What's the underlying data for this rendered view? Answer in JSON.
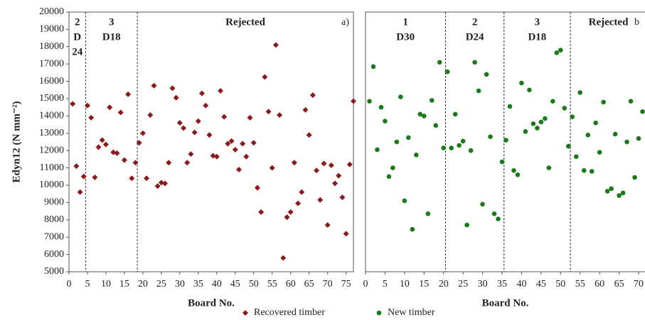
{
  "chart_data": [
    {
      "type": "scatter",
      "panel_label": "a)",
      "y_label": "Edyn12 (N mm⁻²)",
      "x_label": "Board No.",
      "xlim": [
        0,
        77
      ],
      "xticks": [
        0,
        5,
        10,
        15,
        20,
        25,
        30,
        35,
        40,
        45,
        50,
        55,
        60,
        65,
        70,
        75
      ],
      "ylim": [
        5000,
        20000
      ],
      "yticks": [
        5000,
        6000,
        7000,
        8000,
        9000,
        10000,
        11000,
        12000,
        13000,
        14000,
        15000,
        16000,
        17000,
        18000,
        19000,
        20000
      ],
      "dividers": [
        4.5,
        18.5
      ],
      "group_labels": [
        [
          "2",
          "D",
          "24"
        ],
        [
          "3",
          "D18"
        ],
        [
          "Rejected"
        ]
      ],
      "x": [
        1,
        2,
        3,
        4,
        5,
        6,
        7,
        8,
        9,
        10,
        11,
        12,
        13,
        14,
        15,
        16,
        17,
        18,
        19,
        20,
        21,
        22,
        23,
        24,
        25,
        26,
        27,
        28,
        29,
        30,
        31,
        32,
        33,
        34,
        35,
        36,
        37,
        38,
        39,
        40,
        41,
        42,
        43,
        44,
        45,
        46,
        47,
        48,
        49,
        50,
        51,
        52,
        53,
        54,
        55,
        56,
        57,
        58,
        59,
        60,
        61,
        62,
        63,
        64,
        65,
        66,
        67,
        68,
        69,
        70,
        71,
        72,
        73,
        74,
        75,
        76,
        77
      ],
      "series": [
        {
          "name": "Recovered timber",
          "color": "#8b1a1a",
          "marker": "diamond",
          "values": [
            14700,
            11100,
            9600,
            10500,
            14600,
            13900,
            10450,
            12200,
            12600,
            12350,
            14500,
            11900,
            11850,
            14200,
            11450,
            15250,
            10400,
            11300,
            12450,
            13000,
            10400,
            14050,
            15750,
            9950,
            10150,
            10100,
            11300,
            15600,
            15050,
            13600,
            13300,
            11300,
            11800,
            13050,
            13700,
            15300,
            14600,
            12900,
            11700,
            11650,
            15450,
            13950,
            12400,
            12550,
            12050,
            10900,
            12400,
            11650,
            13900,
            12450,
            9850,
            8450,
            16250,
            14250,
            11000,
            18100,
            14050,
            5800,
            8150,
            8450,
            11300,
            8950,
            9600,
            14350,
            12900,
            15200,
            10850,
            9150,
            11250,
            7700,
            11150,
            10100,
            10550,
            9300,
            7200,
            11200,
            14850
          ]
        }
      ]
    },
    {
      "type": "scatter",
      "panel_label": "b",
      "x_label": "Board No.",
      "xlim": [
        0,
        72
      ],
      "xticks": [
        0,
        5,
        10,
        15,
        20,
        25,
        30,
        35,
        40,
        45,
        50,
        55,
        60,
        65,
        70
      ],
      "ylim": [
        5000,
        20000
      ],
      "dividers": [
        20.5,
        35.5,
        52.5
      ],
      "group_labels": [
        [
          "1",
          "D30"
        ],
        [
          "2",
          "D24"
        ],
        [
          "3",
          "D18"
        ],
        [
          "Rejected"
        ]
      ],
      "x": [
        1,
        2,
        3,
        4,
        5,
        6,
        7,
        8,
        9,
        10,
        11,
        12,
        13,
        14,
        15,
        16,
        17,
        18,
        19,
        20,
        21,
        22,
        23,
        24,
        25,
        26,
        27,
        28,
        29,
        30,
        31,
        32,
        33,
        34,
        35,
        36,
        37,
        38,
        39,
        40,
        41,
        42,
        43,
        44,
        45,
        46,
        47,
        48,
        49,
        50,
        51,
        52,
        53,
        54,
        55,
        56,
        57,
        58,
        59,
        60,
        61,
        62,
        63,
        64,
        65,
        66,
        67,
        68,
        69,
        70,
        71
      ],
      "series": [
        {
          "name": "New timber",
          "color": "#1a7a1a",
          "marker": "circle",
          "values": [
            14850,
            16850,
            12050,
            14500,
            13700,
            10500,
            11000,
            12500,
            15100,
            9100,
            12750,
            7450,
            11750,
            14100,
            14000,
            8350,
            14900,
            13450,
            17100,
            12150,
            16550,
            12150,
            14100,
            12300,
            12550,
            7700,
            12000,
            17100,
            15450,
            8900,
            16400,
            12800,
            8350,
            8050,
            11350,
            12600,
            14550,
            10850,
            10600,
            15900,
            13100,
            15500,
            13550,
            13300,
            13650,
            13850,
            11000,
            14850,
            17650,
            17800,
            14450,
            12250,
            13950,
            11650,
            15350,
            10850,
            12900,
            10800,
            13600,
            11900,
            14800,
            9650,
            9800,
            12950,
            9400,
            9550,
            12500,
            14850,
            10450,
            12700,
            14250
          ]
        }
      ]
    }
  ]
}
